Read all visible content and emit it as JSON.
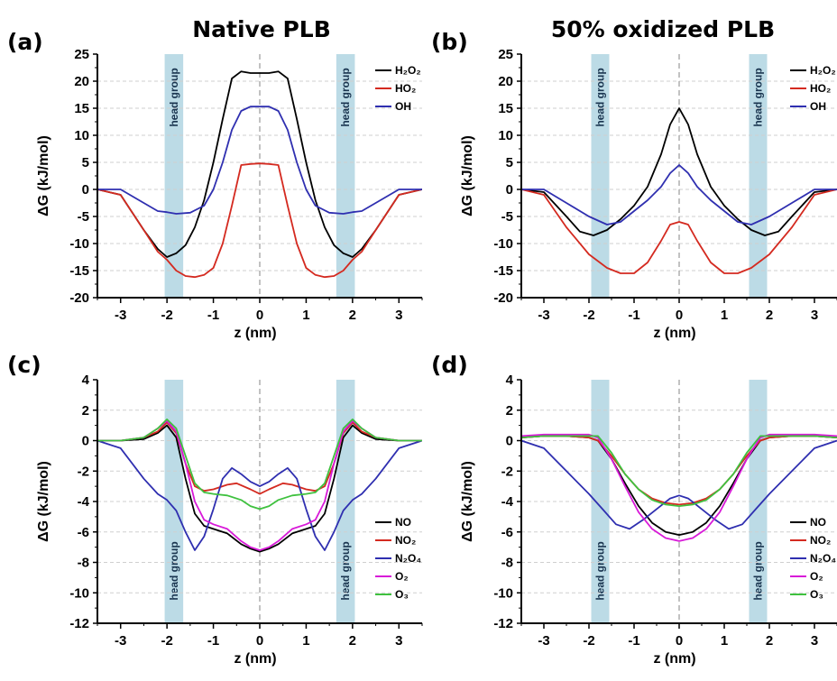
{
  "column_titles": [
    "Native PLB",
    "50% oxidized PLB"
  ],
  "band_label": "head group",
  "chart_data": [
    {
      "panel": "(a)",
      "type": "line",
      "xlabel": "z (nm)",
      "ylabel": "ΔG (kJ/mol)",
      "xlim": [
        -3.5,
        3.5
      ],
      "ylim": [
        -20,
        25
      ],
      "xticks": [
        -3,
        -2,
        -1,
        0,
        1,
        2,
        3
      ],
      "yticks": [
        -20,
        -15,
        -10,
        -5,
        0,
        5,
        10,
        15,
        20,
        25
      ],
      "grid": true,
      "legend_position": "top-right",
      "head_group_bands": [
        [
          -2.05,
          -1.65
        ],
        [
          1.65,
          2.05
        ]
      ],
      "series": [
        {
          "name": "H₂O₂",
          "color": "#000000",
          "x": [
            -3.5,
            -3.0,
            -2.5,
            -2.2,
            -2.0,
            -1.8,
            -1.6,
            -1.4,
            -1.2,
            -1.0,
            -0.8,
            -0.6,
            -0.4,
            -0.2,
            0,
            0.2,
            0.4,
            0.6,
            0.8,
            1.0,
            1.2,
            1.4,
            1.6,
            1.8,
            2.0,
            2.2,
            2.5,
            3.0,
            3.5
          ],
          "y": [
            0,
            -1,
            -7.5,
            -11,
            -12.5,
            -11.8,
            -10.3,
            -7,
            -2,
            5,
            13,
            20.5,
            21.8,
            21.5,
            21.5,
            21.5,
            21.8,
            20.5,
            13,
            5,
            -2,
            -7,
            -10.3,
            -11.8,
            -12.5,
            -11,
            -7.5,
            -1,
            0
          ]
        },
        {
          "name": "HO₂",
          "color": "#d42a20",
          "x": [
            -3.5,
            -3.0,
            -2.5,
            -2.2,
            -2.0,
            -1.8,
            -1.6,
            -1.4,
            -1.2,
            -1.0,
            -0.8,
            -0.6,
            -0.4,
            -0.2,
            0,
            0.2,
            0.4,
            0.6,
            0.8,
            1.0,
            1.2,
            1.4,
            1.6,
            1.8,
            2.0,
            2.2,
            2.5,
            3.0,
            3.5
          ],
          "y": [
            0,
            -1,
            -7.5,
            -11.5,
            -13,
            -15,
            -16,
            -16.2,
            -15.8,
            -14.5,
            -10,
            -3,
            4.5,
            4.7,
            4.8,
            4.7,
            4.5,
            -3,
            -10,
            -14.5,
            -15.8,
            -16.2,
            -16,
            -15,
            -13,
            -11.5,
            -7.5,
            -1,
            0
          ]
        },
        {
          "name": "OH",
          "color": "#2f2fb0",
          "x": [
            -3.5,
            -3.0,
            -2.5,
            -2.2,
            -2.0,
            -1.8,
            -1.5,
            -1.2,
            -1.0,
            -0.8,
            -0.6,
            -0.4,
            -0.2,
            0,
            0.2,
            0.4,
            0.6,
            0.8,
            1.0,
            1.2,
            1.5,
            1.8,
            2.0,
            2.2,
            2.5,
            3.0,
            3.5
          ],
          "y": [
            0,
            0,
            -2.5,
            -4,
            -4.2,
            -4.5,
            -4.3,
            -3,
            0,
            5,
            11,
            14.5,
            15.3,
            15.3,
            15.3,
            14.5,
            11,
            5,
            0,
            -3,
            -4.3,
            -4.5,
            -4.2,
            -4,
            -2.5,
            0,
            0
          ]
        }
      ]
    },
    {
      "panel": "(b)",
      "type": "line",
      "xlabel": "z (nm)",
      "ylabel": "ΔG (kJ/mol)",
      "xlim": [
        -3.5,
        3.5
      ],
      "ylim": [
        -20,
        25
      ],
      "xticks": [
        -3,
        -2,
        -1,
        0,
        1,
        2,
        3
      ],
      "yticks": [
        -20,
        -15,
        -10,
        -5,
        0,
        5,
        10,
        15,
        20,
        25
      ],
      "grid": true,
      "legend_position": "top-right",
      "head_group_bands": [
        [
          -1.95,
          -1.55
        ],
        [
          1.55,
          1.95
        ]
      ],
      "series": [
        {
          "name": "H₂O₂",
          "color": "#000000",
          "x": [
            -3.5,
            -3.0,
            -2.5,
            -2.2,
            -1.9,
            -1.6,
            -1.3,
            -1.0,
            -0.7,
            -0.4,
            -0.2,
            0,
            0.2,
            0.4,
            0.7,
            1.0,
            1.3,
            1.6,
            1.9,
            2.2,
            2.5,
            3.0,
            3.5
          ],
          "y": [
            0,
            -0.5,
            -5,
            -7.8,
            -8.5,
            -7.5,
            -5.5,
            -3,
            0.5,
            6.5,
            12,
            15,
            12,
            6.5,
            0.5,
            -3,
            -5.5,
            -7.5,
            -8.5,
            -7.8,
            -5,
            -0.5,
            0
          ]
        },
        {
          "name": "HO₂",
          "color": "#d42a20",
          "x": [
            -3.5,
            -3.0,
            -2.5,
            -2.0,
            -1.6,
            -1.3,
            -1.0,
            -0.7,
            -0.4,
            -0.2,
            0,
            0.2,
            0.4,
            0.7,
            1.0,
            1.3,
            1.6,
            2.0,
            2.5,
            3.0,
            3.5
          ],
          "y": [
            0,
            -1,
            -7,
            -12,
            -14.5,
            -15.5,
            -15.5,
            -13.5,
            -9.5,
            -6.5,
            -6,
            -6.5,
            -9.5,
            -13.5,
            -15.5,
            -15.5,
            -14.5,
            -12,
            -7,
            -1,
            0
          ]
        },
        {
          "name": "OH",
          "color": "#2f2fb0",
          "x": [
            -3.5,
            -3.0,
            -2.5,
            -2.0,
            -1.6,
            -1.3,
            -1.0,
            -0.7,
            -0.4,
            -0.2,
            0,
            0.2,
            0.4,
            0.7,
            1.0,
            1.3,
            1.6,
            2.0,
            2.5,
            3.0,
            3.5
          ],
          "y": [
            0,
            0,
            -2.5,
            -5,
            -6.5,
            -6,
            -4,
            -2,
            0.5,
            3,
            4.5,
            3,
            0.5,
            -2,
            -4,
            -6,
            -6.5,
            -5,
            -2.5,
            0,
            0
          ]
        }
      ]
    },
    {
      "panel": "(c)",
      "type": "line",
      "xlabel": "z (nm)",
      "ylabel": "ΔG (kJ/mol)",
      "xlim": [
        -3.5,
        3.5
      ],
      "ylim": [
        -12,
        4
      ],
      "xticks": [
        -3,
        -2,
        -1,
        0,
        1,
        2,
        3
      ],
      "yticks": [
        -12,
        -10,
        -8,
        -6,
        -4,
        -2,
        0,
        2,
        4
      ],
      "grid": true,
      "legend_position": "bottom-right",
      "head_group_bands": [
        [
          -2.05,
          -1.65
        ],
        [
          1.65,
          2.05
        ]
      ],
      "series": [
        {
          "name": "NO",
          "color": "#000000",
          "x": [
            -3.5,
            -3.0,
            -2.5,
            -2.2,
            -2.0,
            -1.8,
            -1.6,
            -1.4,
            -1.2,
            -1.0,
            -0.7,
            -0.4,
            -0.2,
            0,
            0.2,
            0.4,
            0.7,
            1.0,
            1.2,
            1.4,
            1.6,
            1.8,
            2.0,
            2.2,
            2.5,
            3.0,
            3.5
          ],
          "y": [
            0,
            0,
            0.1,
            0.5,
            1.0,
            0.2,
            -2.5,
            -4.8,
            -5.6,
            -5.8,
            -6.1,
            -6.8,
            -7.1,
            -7.3,
            -7.1,
            -6.8,
            -6.1,
            -5.8,
            -5.6,
            -4.8,
            -2.5,
            0.2,
            1.0,
            0.5,
            0.1,
            0,
            0
          ]
        },
        {
          "name": "NO₂",
          "color": "#d42a20",
          "x": [
            -3.5,
            -3.0,
            -2.5,
            -2.2,
            -2.0,
            -1.8,
            -1.6,
            -1.4,
            -1.2,
            -1.0,
            -0.7,
            -0.5,
            -0.2,
            0,
            0.2,
            0.5,
            0.7,
            1.0,
            1.2,
            1.4,
            1.6,
            1.8,
            2.0,
            2.2,
            2.5,
            3.0,
            3.5
          ],
          "y": [
            0,
            0,
            0.2,
            0.6,
            1.2,
            0.5,
            -1.5,
            -3,
            -3.3,
            -3.2,
            -2.9,
            -2.8,
            -3.2,
            -3.5,
            -3.2,
            -2.8,
            -2.9,
            -3.2,
            -3.3,
            -3,
            -1.5,
            0.5,
            1.2,
            0.6,
            0.2,
            0,
            0
          ]
        },
        {
          "name": "N₂O₄",
          "color": "#2f2fb0",
          "x": [
            -3.5,
            -3.0,
            -2.5,
            -2.2,
            -2.0,
            -1.8,
            -1.6,
            -1.4,
            -1.2,
            -1.0,
            -0.8,
            -0.6,
            -0.4,
            -0.2,
            0,
            0.2,
            0.4,
            0.6,
            0.8,
            1.0,
            1.2,
            1.4,
            1.6,
            1.8,
            2.0,
            2.2,
            2.5,
            3.0,
            3.5
          ],
          "y": [
            0,
            -0.5,
            -2.5,
            -3.5,
            -3.9,
            -4.6,
            -6,
            -7.2,
            -6.3,
            -4.5,
            -2.5,
            -1.8,
            -2.2,
            -2.7,
            -3,
            -2.7,
            -2.2,
            -1.8,
            -2.5,
            -4.5,
            -6.3,
            -7.2,
            -6,
            -4.6,
            -3.9,
            -3.5,
            -2.5,
            -0.5,
            0
          ]
        },
        {
          "name": "O₂",
          "color": "#d81ad8",
          "x": [
            -3.5,
            -3.0,
            -2.5,
            -2.2,
            -2.0,
            -1.8,
            -1.6,
            -1.4,
            -1.2,
            -1.0,
            -0.7,
            -0.4,
            -0.2,
            0,
            0.2,
            0.4,
            0.7,
            1.0,
            1.2,
            1.4,
            1.6,
            1.8,
            2.0,
            2.2,
            2.5,
            3.0,
            3.5
          ],
          "y": [
            0,
            0,
            0.2,
            0.8,
            1.3,
            0.6,
            -1.5,
            -4,
            -5.2,
            -5.5,
            -5.8,
            -6.6,
            -7,
            -7.2,
            -7,
            -6.6,
            -5.8,
            -5.5,
            -5.2,
            -4,
            -1.5,
            0.6,
            1.3,
            0.8,
            0.2,
            0,
            0
          ]
        },
        {
          "name": "O₃",
          "color": "#3fc13f",
          "x": [
            -3.5,
            -3.0,
            -2.5,
            -2.2,
            -2.0,
            -1.8,
            -1.6,
            -1.4,
            -1.2,
            -1.0,
            -0.7,
            -0.4,
            -0.2,
            0,
            0.2,
            0.4,
            0.7,
            1.0,
            1.2,
            1.4,
            1.6,
            1.8,
            2.0,
            2.2,
            2.5,
            3.0,
            3.5
          ],
          "y": [
            0,
            0,
            0.2,
            0.8,
            1.4,
            0.8,
            -1,
            -2.8,
            -3.4,
            -3.5,
            -3.6,
            -3.9,
            -4.3,
            -4.5,
            -4.3,
            -3.9,
            -3.6,
            -3.5,
            -3.4,
            -2.8,
            -1,
            0.8,
            1.4,
            0.8,
            0.2,
            0,
            0
          ]
        }
      ]
    },
    {
      "panel": "(d)",
      "type": "line",
      "xlabel": "z (nm)",
      "ylabel": "ΔG (kJ/mol)",
      "xlim": [
        -3.5,
        3.5
      ],
      "ylim": [
        -12,
        4
      ],
      "xticks": [
        -3,
        -2,
        -1,
        0,
        1,
        2,
        3
      ],
      "yticks": [
        -12,
        -10,
        -8,
        -6,
        -4,
        -2,
        0,
        2,
        4
      ],
      "grid": true,
      "legend_position": "bottom-right",
      "head_group_bands": [
        [
          -1.95,
          -1.55
        ],
        [
          1.55,
          1.95
        ]
      ],
      "series": [
        {
          "name": "NO",
          "color": "#000000",
          "x": [
            -3.5,
            -3.0,
            -2.5,
            -2.0,
            -1.8,
            -1.5,
            -1.2,
            -0.9,
            -0.6,
            -0.3,
            0,
            0.3,
            0.6,
            0.9,
            1.2,
            1.5,
            1.8,
            2.0,
            2.5,
            3.0,
            3.5
          ],
          "y": [
            0.2,
            0.3,
            0.3,
            0.2,
            0,
            -1.2,
            -2.8,
            -4.3,
            -5.4,
            -6,
            -6.2,
            -6,
            -5.4,
            -4.3,
            -2.8,
            -1.2,
            0,
            0.2,
            0.3,
            0.3,
            0.2
          ]
        },
        {
          "name": "NO₂",
          "color": "#d42a20",
          "x": [
            -3.5,
            -3.0,
            -2.5,
            -2.0,
            -1.8,
            -1.5,
            -1.2,
            -0.9,
            -0.6,
            -0.3,
            0,
            0.3,
            0.6,
            0.9,
            1.2,
            1.5,
            1.8,
            2.0,
            2.5,
            3.0,
            3.5
          ],
          "y": [
            0.2,
            0.3,
            0.3,
            0.2,
            0,
            -1,
            -2.2,
            -3.2,
            -3.8,
            -4.1,
            -4.2,
            -4.1,
            -3.8,
            -3.2,
            -2.2,
            -1,
            0,
            0.2,
            0.3,
            0.3,
            0.2
          ]
        },
        {
          "name": "N₂O₄",
          "color": "#2f2fb0",
          "x": [
            -3.5,
            -3.0,
            -2.5,
            -2.0,
            -1.7,
            -1.4,
            -1.1,
            -0.8,
            -0.5,
            -0.2,
            0,
            0.2,
            0.5,
            0.8,
            1.1,
            1.4,
            1.7,
            2.0,
            2.5,
            3.0,
            3.5
          ],
          "y": [
            0,
            -0.5,
            -2,
            -3.5,
            -4.5,
            -5.5,
            -5.8,
            -5.2,
            -4.5,
            -3.8,
            -3.6,
            -3.8,
            -4.5,
            -5.2,
            -5.8,
            -5.5,
            -4.5,
            -3.5,
            -2,
            -0.5,
            0
          ]
        },
        {
          "name": "O₂",
          "color": "#d81ad8",
          "x": [
            -3.5,
            -3.0,
            -2.5,
            -2.0,
            -1.8,
            -1.5,
            -1.2,
            -0.9,
            -0.6,
            -0.3,
            0,
            0.3,
            0.6,
            0.9,
            1.2,
            1.5,
            1.8,
            2.0,
            2.5,
            3.0,
            3.5
          ],
          "y": [
            0.3,
            0.4,
            0.4,
            0.4,
            0.2,
            -1.2,
            -3,
            -4.7,
            -5.8,
            -6.4,
            -6.6,
            -6.4,
            -5.8,
            -4.7,
            -3,
            -1.2,
            0.2,
            0.4,
            0.4,
            0.4,
            0.3
          ]
        },
        {
          "name": "O₃",
          "color": "#3fc13f",
          "x": [
            -3.5,
            -3.0,
            -2.5,
            -2.0,
            -1.8,
            -1.5,
            -1.2,
            -0.9,
            -0.6,
            -0.3,
            0,
            0.3,
            0.6,
            0.9,
            1.2,
            1.5,
            1.8,
            2.0,
            2.5,
            3.0,
            3.5
          ],
          "y": [
            0.2,
            0.3,
            0.3,
            0.3,
            0.3,
            -0.8,
            -2.2,
            -3.2,
            -3.9,
            -4.2,
            -4.3,
            -4.2,
            -3.9,
            -3.2,
            -2.2,
            -0.8,
            0.3,
            0.3,
            0.3,
            0.3,
            0.2
          ]
        }
      ]
    }
  ]
}
